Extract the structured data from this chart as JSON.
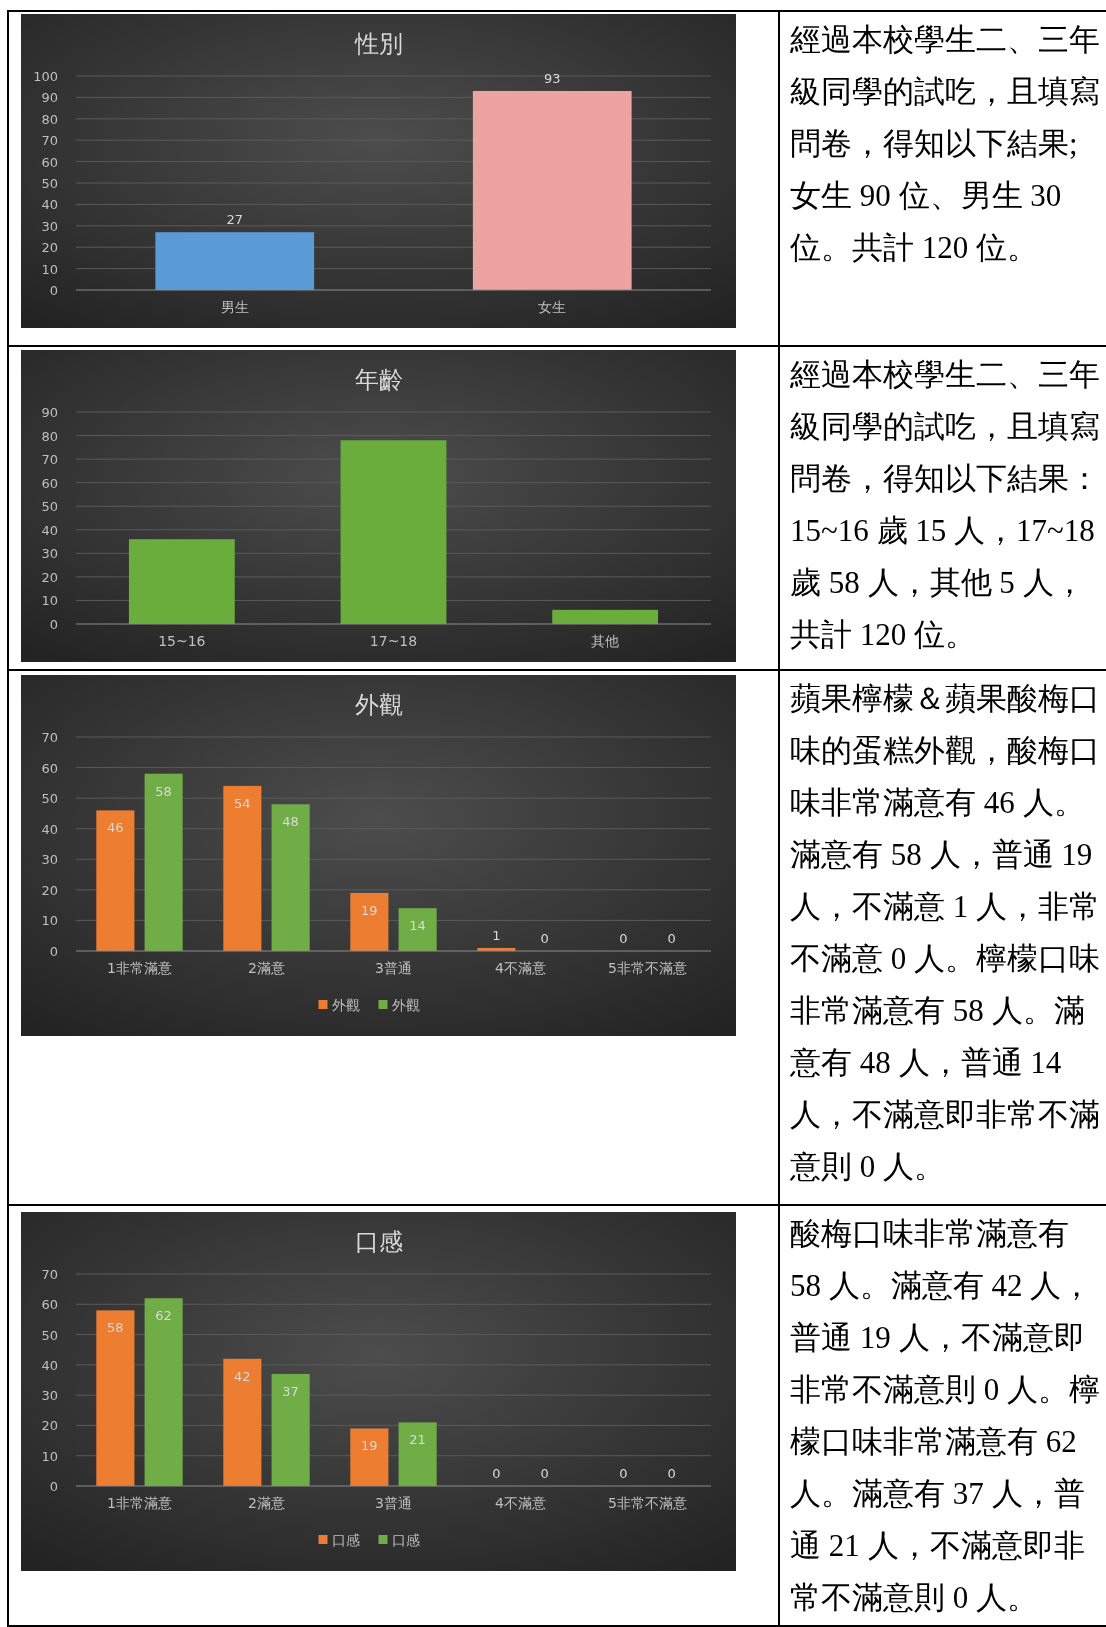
{
  "chart_data": [
    {
      "type": "bar",
      "title": "性別",
      "categories": [
        "男生",
        "女生"
      ],
      "values": [
        27,
        93
      ],
      "colors": [
        "#5b9bd5",
        "#eea3a3"
      ],
      "ylim": [
        0,
        100
      ],
      "yticks": [
        0,
        10,
        20,
        30,
        40,
        50,
        60,
        70,
        80,
        90,
        100
      ],
      "grid": "y",
      "data_labels": true
    },
    {
      "type": "other",
      "annotations": [
        "經過本校學生二、三年級同學的試吃，且填寫問卷，得知以下結果;女生 90 位、男生 30 位。共計 120 位。"
      ]
    },
    {
      "type": "bar",
      "title": "年齡",
      "categories": [
        "15~16",
        "17~18",
        "其他"
      ],
      "values": [
        36,
        78,
        6
      ],
      "color": "#6aad3d",
      "ylim": [
        0,
        90
      ],
      "yticks": [
        0,
        10,
        20,
        30,
        40,
        50,
        60,
        70,
        80,
        90
      ],
      "grid": "y"
    },
    {
      "type": "other",
      "annotations": [
        "經過本校學生二、三年級同學的試吃，且填寫問卷，得知以下結果：15~16 歲  15 人，17~18 歲  58 人，其他 5 人，共計 120 位。"
      ]
    },
    {
      "type": "bar",
      "title": "外觀",
      "categories": [
        "1非常滿意",
        "2滿意",
        "3普通",
        "4不滿意",
        "5非常不滿意"
      ],
      "series": [
        {
          "name": "外觀",
          "color": "#ed7d31",
          "values": [
            46,
            54,
            19,
            1,
            0
          ]
        },
        {
          "name": "外觀",
          "color": "#70ad47",
          "values": [
            58,
            48,
            14,
            0,
            0
          ]
        }
      ],
      "ylim": [
        0,
        70
      ],
      "yticks": [
        0,
        10,
        20,
        30,
        40,
        50,
        60,
        70
      ],
      "grid": "y",
      "data_labels": true,
      "legend": "bottom"
    },
    {
      "type": "other",
      "annotations": [
        "蘋果檸檬＆蘋果酸梅口味的蛋糕外觀，酸梅口味非常滿意有 46 人。滿意有 58 人，普通 19 人，不滿意 1 人，非常不滿意 0 人。檸檬口味非常滿意有 58 人。滿意有 48 人，普通 14 人，不滿意即非常不滿意則 0 人。"
      ]
    },
    {
      "type": "bar",
      "title": "口感",
      "categories": [
        "1非常滿意",
        "2滿意",
        "3普通",
        "4不滿意",
        "5非常不滿意"
      ],
      "series": [
        {
          "name": "口感",
          "color": "#ed7d31",
          "values": [
            58,
            42,
            19,
            0,
            0
          ]
        },
        {
          "name": "口感",
          "color": "#70ad47",
          "values": [
            62,
            37,
            21,
            0,
            0
          ]
        }
      ],
      "ylim": [
        0,
        70
      ],
      "yticks": [
        0,
        10,
        20,
        30,
        40,
        50,
        60,
        70
      ],
      "grid": "y",
      "data_labels": true,
      "legend": "bottom"
    },
    {
      "type": "other",
      "annotations": [
        "酸梅口味非常滿意有 58 人。滿意有 42 人，普通 19 人，不滿意即非常不滿意則 0 人。檸檬口味非常滿意有 62 人。滿意有 37 人，普通 21 人，不滿意即非常不滿意則 0 人。"
      ]
    }
  ]
}
